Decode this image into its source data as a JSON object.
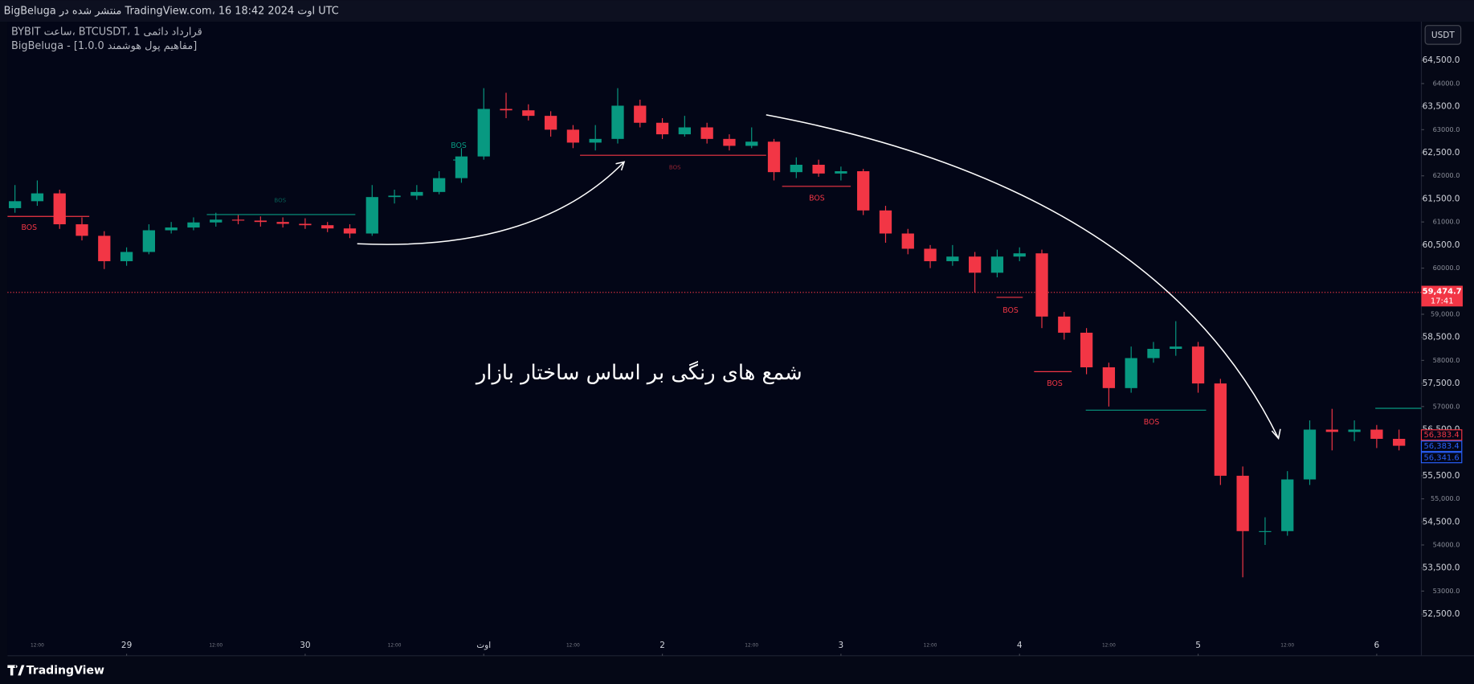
{
  "header": {
    "publisher": "BigBeluga منتشر شده در TradingView.com، 16 اوت 2024 18:42 UTC",
    "symbol": "BYBIT ساعت، BTCUSDT، 1 قرارداد دائمی",
    "indicator": "BigBeluga - [مفاهیم پول هوشمند 1.0.0]",
    "currency": "USDT"
  },
  "footer": {
    "brand": "TradingView"
  },
  "chart_data": {
    "type": "candlestick",
    "annotation": "شمع های رنگی بر اساس ساختار بازار",
    "bos_labels": [
      "BOS",
      "BOS",
      "BOS",
      "BOS",
      "BOS",
      "BOS",
      "BOS",
      "BOS"
    ],
    "up_color": "#089981",
    "down_color": "#f23645",
    "xlim": [
      -16,
      174
    ],
    "ylim": [
      51600,
      65340
    ],
    "grid": false,
    "xticks": [
      {
        "value": 0,
        "label": "29"
      },
      {
        "value": 24,
        "label": "30"
      },
      {
        "value": 48,
        "label": "اوت"
      },
      {
        "value": 72,
        "label": "2"
      },
      {
        "value": 96,
        "label": "3"
      },
      {
        "value": 120,
        "label": "4"
      },
      {
        "value": 144,
        "label": "5"
      },
      {
        "value": 168,
        "label": "6"
      }
    ],
    "xticks_minor": [
      {
        "value": -12,
        "label": "12:00"
      },
      {
        "value": 12,
        "label": "12:00"
      },
      {
        "value": 36,
        "label": "12:00"
      },
      {
        "value": 60,
        "label": "12:00"
      },
      {
        "value": 84,
        "label": "12:00"
      },
      {
        "value": 108,
        "label": "12:00"
      },
      {
        "value": 132,
        "label": "12:00"
      },
      {
        "value": 156,
        "label": "12:00"
      }
    ],
    "yticks": [
      {
        "value": 64500,
        "label": "64,500.0"
      },
      {
        "value": 64000,
        "label": "64000.0"
      },
      {
        "value": 63500,
        "label": "63,500.0"
      },
      {
        "value": 63000,
        "label": "63000.0"
      },
      {
        "value": 62500,
        "label": "62,500.0"
      },
      {
        "value": 62000,
        "label": "62000.0"
      },
      {
        "value": 61500,
        "label": "61,500.0"
      },
      {
        "value": 61000,
        "label": "61000.0"
      },
      {
        "value": 60500,
        "label": "60,500.0"
      },
      {
        "value": 60000,
        "label": "60000.0"
      },
      {
        "value": 59000,
        "label": "59,000.0"
      },
      {
        "value": 58500,
        "label": "58,500.0"
      },
      {
        "value": 58000,
        "label": "58000.0"
      },
      {
        "value": 57500,
        "label": "57,500.0"
      },
      {
        "value": 57000,
        "label": "57000.0"
      },
      {
        "value": 56500,
        "label": "56,500.0"
      },
      {
        "value": 55500,
        "label": "55,500.0"
      },
      {
        "value": 55000,
        "label": "55,000.0"
      },
      {
        "value": 54500,
        "label": "54,500.0"
      },
      {
        "value": 54000,
        "label": "54000.0"
      },
      {
        "value": 53500,
        "label": "53,500.0"
      },
      {
        "value": 53000,
        "label": "53000.0"
      },
      {
        "value": 52500,
        "label": "52,500.0"
      }
    ],
    "last_price": {
      "value": 59474.7,
      "label": "59,474.7",
      "countdown": "17:41",
      "color": "#f23645"
    },
    "price_labels": [
      {
        "value": 56383.4,
        "label": "56,383.4",
        "color": "#f23645"
      },
      {
        "value": 56383.4,
        "label": "56,383.4",
        "color": "#2962ff"
      },
      {
        "value": 56341.6,
        "label": "56,341.6",
        "color": "#2962ff"
      }
    ],
    "series": [
      {
        "x": [
          -15,
          -12,
          -9,
          -6,
          -3,
          0,
          3,
          6,
          9,
          12,
          15,
          18,
          21,
          24,
          27,
          30,
          33,
          36,
          39,
          42,
          45,
          48,
          51,
          54,
          57,
          60,
          63,
          66,
          69,
          72,
          75,
          78,
          81,
          84,
          87,
          90,
          93,
          96,
          99,
          102,
          105,
          108,
          111,
          114,
          117,
          120,
          123,
          126,
          129,
          132,
          135,
          138,
          141,
          144,
          147,
          150,
          153,
          156,
          159,
          162,
          165,
          168,
          171
        ],
        "open": [
          61300,
          61450,
          61620,
          60950,
          60700,
          60150,
          60350,
          60820,
          60880,
          60990,
          61050,
          61030,
          61000,
          60960,
          60930,
          60860,
          60750,
          61540,
          61570,
          61650,
          61950,
          62420,
          63450,
          63420,
          63300,
          63000,
          62720,
          62800,
          63520,
          63150,
          62900,
          63050,
          62800,
          62650,
          62740,
          62080,
          62240,
          62050,
          62100,
          61250,
          60750,
          60420,
          60150,
          60250,
          59900,
          60250,
          60320,
          58950,
          58600,
          57850,
          57400,
          58050,
          58250,
          58300,
          57500,
          55500,
          54300,
          54300,
          55420,
          56500,
          56450,
          56500,
          56300
        ],
        "high": [
          61800,
          61900,
          61700,
          61100,
          60800,
          60450,
          60950,
          61000,
          61100,
          61200,
          61150,
          61120,
          61100,
          61080,
          61000,
          60950,
          61800,
          61700,
          61800,
          62100,
          62600,
          63900,
          63800,
          63550,
          63400,
          63100,
          63100,
          63900,
          63650,
          63250,
          63300,
          63150,
          62900,
          63050,
          62800,
          62400,
          62350,
          62200,
          62150,
          61350,
          60850,
          60500,
          60500,
          60350,
          60400,
          60450,
          60400,
          59050,
          58700,
          57950,
          58300,
          58400,
          58850,
          58400,
          57600,
          55700,
          54600,
          55600,
          56700,
          56950,
          56700,
          56600,
          56500
        ],
        "low": [
          61200,
          61350,
          60850,
          60600,
          59980,
          60050,
          60300,
          60750,
          60820,
          60900,
          60950,
          60900,
          60880,
          60850,
          60780,
          60650,
          60700,
          61400,
          61480,
          61600,
          61850,
          62350,
          63250,
          63200,
          62850,
          62600,
          62550,
          62700,
          63050,
          62800,
          62850,
          62700,
          62550,
          62600,
          61900,
          61950,
          61980,
          61900,
          61150,
          60550,
          60300,
          60000,
          60050,
          59470,
          59800,
          60150,
          58700,
          58450,
          57700,
          57000,
          57300,
          57950,
          58100,
          57300,
          55300,
          53300,
          54000,
          54200,
          55300,
          56050,
          56250,
          56100,
          56050
        ],
        "close": [
          61450,
          61620,
          60950,
          60700,
          60150,
          60350,
          60820,
          60880,
          60990,
          61050,
          61030,
          61000,
          60960,
          60930,
          60860,
          60750,
          61540,
          61570,
          61650,
          61950,
          62420,
          63450,
          63420,
          63300,
          63000,
          62720,
          62800,
          63520,
          63150,
          62900,
          63050,
          62800,
          62650,
          62740,
          62080,
          62240,
          62050,
          62100,
          61250,
          60750,
          60420,
          60150,
          60250,
          59900,
          60250,
          60320,
          58950,
          58600,
          57850,
          57400,
          58050,
          58250,
          58300,
          57500,
          55500,
          54300,
          54300,
          55420,
          56500,
          56450,
          56500,
          56300,
          56150
        ]
      }
    ]
  }
}
